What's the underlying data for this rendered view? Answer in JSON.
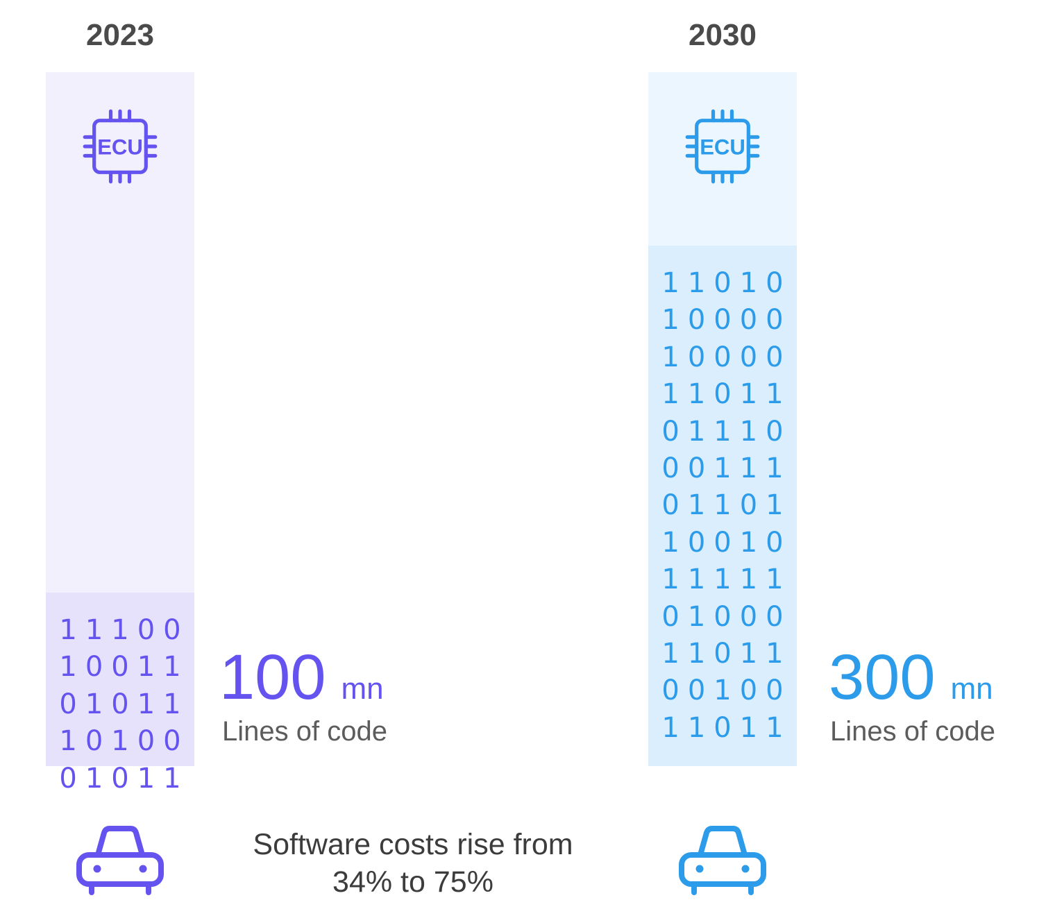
{
  "chart_data": {
    "type": "bar",
    "categories": [
      "2023",
      "2030"
    ],
    "values": [
      100,
      300
    ],
    "unit": "mn",
    "caption": "Lines of code",
    "ylim": [
      0,
      400
    ],
    "colors": [
      "#6553f0",
      "#2b9bea"
    ],
    "icons": [
      "ecu-chip-icon",
      "car-icon"
    ],
    "binary": [
      [
        "11100",
        "10011",
        "01011",
        "10100",
        "01011"
      ],
      [
        "11010",
        "10000",
        "10000",
        "11011",
        "01110",
        "00111",
        "01101",
        "10010",
        "11111",
        "01000",
        "11011",
        "00100",
        "11011"
      ]
    ]
  },
  "ecu_label": "ECU",
  "note": {
    "line1": "Software costs rise from",
    "line2": "34% to 75%"
  }
}
